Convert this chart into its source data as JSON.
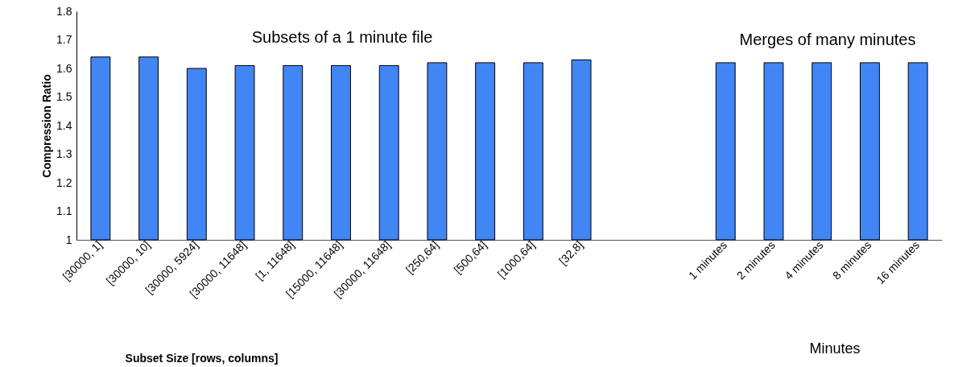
{
  "chart_data": {
    "type": "bar",
    "ylabel": "Compression Ratio",
    "xlabel": "Subset  Size [rows, columns]",
    "categories": [
      "[30000, 1]",
      "[30000, 10]",
      "[30000, 5924]",
      "[30000, 11648]",
      "[1, 11648]",
      "[15000, 11648]",
      "[30000, 11648]",
      "[250,64]",
      "[500,64]",
      "[1000,64]",
      "[32,8]",
      null,
      null,
      "1 minutes",
      "2 minutes",
      "4 minutes",
      "8 minutes",
      "16 minutes"
    ],
    "values": [
      1.64,
      1.64,
      1.6,
      1.61,
      1.61,
      1.61,
      1.61,
      1.62,
      1.62,
      1.62,
      1.63,
      null,
      null,
      1.62,
      1.62,
      1.62,
      1.62,
      1.62
    ],
    "color": "#4285f4",
    "ylim": [
      1,
      1.8
    ],
    "yticks": [
      1,
      1.1,
      1.2,
      1.3,
      1.4,
      1.5,
      1.6,
      1.7,
      1.8
    ],
    "grid": false,
    "annotations": [
      "Subsets of a 1 minute file",
      "Merges of many minutes",
      "Minutes"
    ]
  }
}
